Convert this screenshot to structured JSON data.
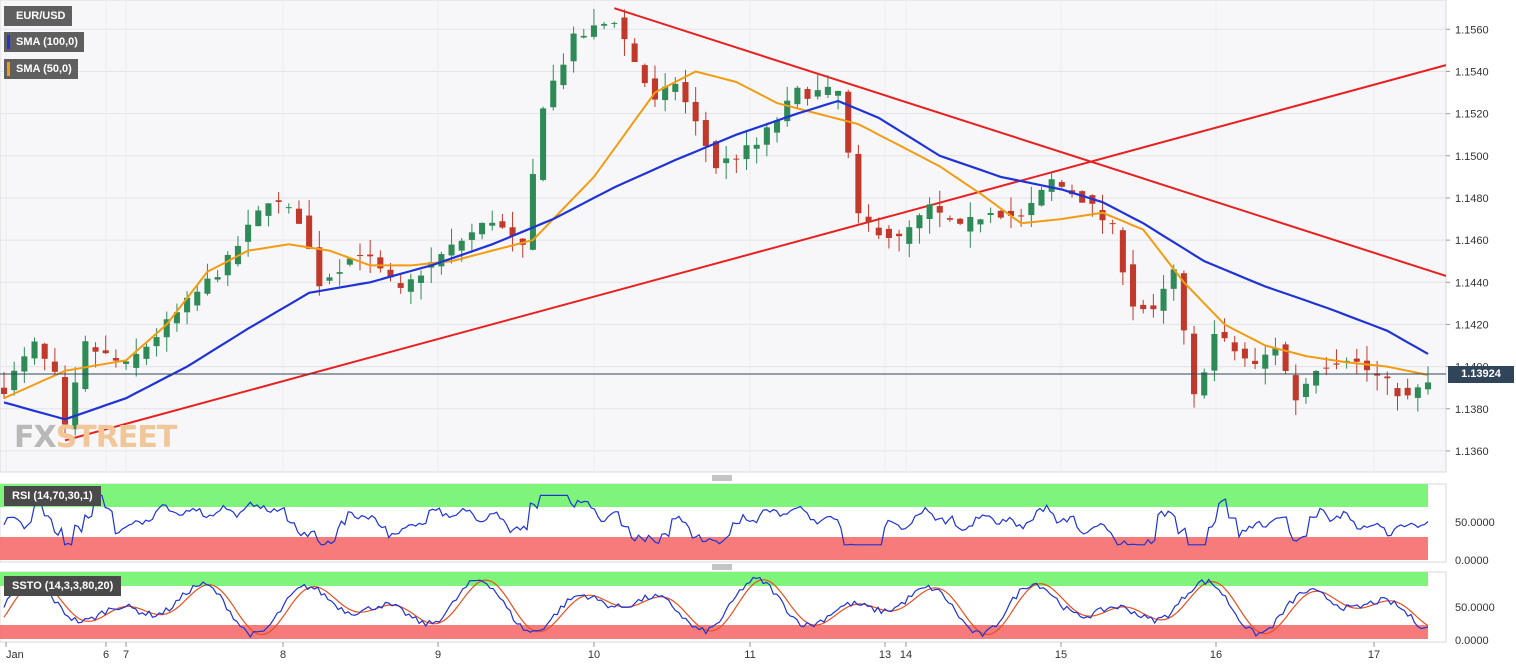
{
  "legend": {
    "symbol": "EUR/USD",
    "sma100": "SMA (100,0)",
    "sma50": "SMA (50,0)"
  },
  "colors": {
    "sma100": "#1f33d6",
    "sma50": "#f39c12",
    "trendline": "#e8201f",
    "candle_up": "#2e8b57",
    "candle_down": "#c0392b",
    "rsi_line": "#1f33d6",
    "ssto_k": "#1f33d6",
    "ssto_d": "#e8501f",
    "overbought_zone": "#7ef57a",
    "oversold_zone": "#f77b7b",
    "price_tag_bg": "#304559"
  },
  "watermark": {
    "part1": "FX",
    "part2": "STREET"
  },
  "current_price": "1.13924",
  "rsi_panel": {
    "label": "RSI (14,70,30,1)",
    "ticks": [
      "50.0000",
      "0.0000"
    ]
  },
  "ssto_panel": {
    "label": "SSTO (14,3,3,80,20)",
    "ticks": [
      "50.0000",
      "0.0000"
    ]
  },
  "chart_data": {
    "type": "candlestick",
    "symbol": "EUR/USD",
    "y_ticks": [
      "1.1560",
      "1.1540",
      "1.1520",
      "1.1500",
      "1.1480",
      "1.1460",
      "1.1440",
      "1.1420",
      "1.1400",
      "1.1380",
      "1.1360"
    ],
    "ylim": [
      1.135,
      1.1572
    ],
    "x_labels": [
      "Jan",
      "6",
      "7",
      "8",
      "9",
      "10",
      "11",
      "13",
      "14",
      "15",
      "16",
      "17"
    ],
    "anchors": [
      [
        0,
        1.139
      ],
      [
        3,
        1.141
      ],
      [
        5,
        1.1395
      ],
      [
        6,
        1.137
      ],
      [
        8,
        1.141
      ],
      [
        12,
        1.14
      ],
      [
        16,
        1.142
      ],
      [
        22,
        1.145
      ],
      [
        26,
        1.148
      ],
      [
        29,
        1.147
      ],
      [
        31,
        1.144
      ],
      [
        35,
        1.1455
      ],
      [
        39,
        1.1435
      ],
      [
        41,
        1.1445
      ],
      [
        45,
        1.146
      ],
      [
        48,
        1.147
      ],
      [
        51,
        1.1455
      ],
      [
        53,
        1.1525
      ],
      [
        56,
        1.1555
      ],
      [
        60,
        1.1565
      ],
      [
        64,
        1.1525
      ],
      [
        66,
        1.1535
      ],
      [
        70,
        1.1495
      ],
      [
        74,
        1.1505
      ],
      [
        78,
        1.153
      ],
      [
        82,
        1.153
      ],
      [
        84,
        1.147
      ],
      [
        88,
        1.146
      ],
      [
        91,
        1.1475
      ],
      [
        94,
        1.1465
      ],
      [
        97,
        1.1475
      ],
      [
        100,
        1.147
      ],
      [
        103,
        1.1488
      ],
      [
        106,
        1.148
      ],
      [
        109,
        1.1465
      ],
      [
        111,
        1.143
      ],
      [
        113,
        1.1425
      ],
      [
        115,
        1.1445
      ],
      [
        117,
        1.1385
      ],
      [
        119,
        1.1415
      ],
      [
        123,
        1.14
      ],
      [
        125,
        1.141
      ],
      [
        127,
        1.1385
      ],
      [
        129,
        1.14
      ],
      [
        132,
        1.1405
      ],
      [
        135,
        1.1395
      ],
      [
        138,
        1.1385
      ],
      [
        140,
        1.1392
      ]
    ],
    "sma50_anchors": [
      [
        0,
        1.1385
      ],
      [
        6,
        1.1398
      ],
      [
        12,
        1.1403
      ],
      [
        16,
        1.142
      ],
      [
        20,
        1.1445
      ],
      [
        24,
        1.1455
      ],
      [
        28,
        1.1458
      ],
      [
        32,
        1.1455
      ],
      [
        36,
        1.1448
      ],
      [
        40,
        1.1448
      ],
      [
        44,
        1.145
      ],
      [
        52,
        1.146
      ],
      [
        58,
        1.149
      ],
      [
        64,
        1.153
      ],
      [
        68,
        1.154
      ],
      [
        72,
        1.1535
      ],
      [
        76,
        1.1525
      ],
      [
        80,
        1.152
      ],
      [
        84,
        1.1515
      ],
      [
        88,
        1.1505
      ],
      [
        92,
        1.1495
      ],
      [
        96,
        1.1482
      ],
      [
        100,
        1.1468
      ],
      [
        104,
        1.147
      ],
      [
        108,
        1.1473
      ],
      [
        112,
        1.1465
      ],
      [
        116,
        1.144
      ],
      [
        120,
        1.142
      ],
      [
        124,
        1.141
      ],
      [
        128,
        1.1405
      ],
      [
        132,
        1.1402
      ],
      [
        136,
        1.14
      ],
      [
        140,
        1.1396
      ]
    ],
    "sma100_anchors": [
      [
        0,
        1.1383
      ],
      [
        6,
        1.1375
      ],
      [
        12,
        1.1385
      ],
      [
        18,
        1.14
      ],
      [
        24,
        1.1418
      ],
      [
        30,
        1.1435
      ],
      [
        36,
        1.144
      ],
      [
        42,
        1.1448
      ],
      [
        48,
        1.1458
      ],
      [
        54,
        1.147
      ],
      [
        60,
        1.1485
      ],
      [
        66,
        1.1498
      ],
      [
        72,
        1.151
      ],
      [
        78,
        1.152
      ],
      [
        82,
        1.1526
      ],
      [
        86,
        1.1518
      ],
      [
        92,
        1.15
      ],
      [
        98,
        1.149
      ],
      [
        104,
        1.1484
      ],
      [
        108,
        1.1478
      ],
      [
        112,
        1.1468
      ],
      [
        118,
        1.145
      ],
      [
        124,
        1.1438
      ],
      [
        130,
        1.1428
      ],
      [
        136,
        1.1417
      ],
      [
        140,
        1.1406
      ]
    ],
    "trendlines": [
      {
        "from": [
          6,
          1.1365
        ],
        "to": [
          143,
          1.1543
        ]
      },
      {
        "from": [
          60,
          1.157
        ],
        "to": [
          143,
          1.1443
        ]
      }
    ]
  }
}
